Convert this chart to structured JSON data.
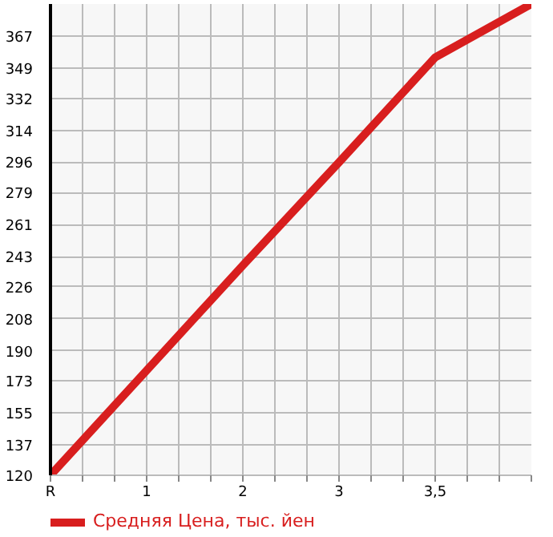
{
  "chart_data": {
    "type": "line",
    "categories": [
      "R",
      "1",
      "2",
      "3",
      "3,5",
      null
    ],
    "series": [
      {
        "name": "Средняя Цена, тыс. йен",
        "color": "#d81e1e",
        "values": [
          120,
          179,
          238,
          296,
          355,
          385
        ]
      }
    ],
    "ylim": [
      120,
      385
    ],
    "yticks": [
      120,
      137,
      155,
      173,
      190,
      208,
      226,
      243,
      261,
      279,
      296,
      314,
      332,
      349,
      367
    ],
    "grid": true,
    "legend": "bottom",
    "marker": "none",
    "line_style": "solid"
  }
}
